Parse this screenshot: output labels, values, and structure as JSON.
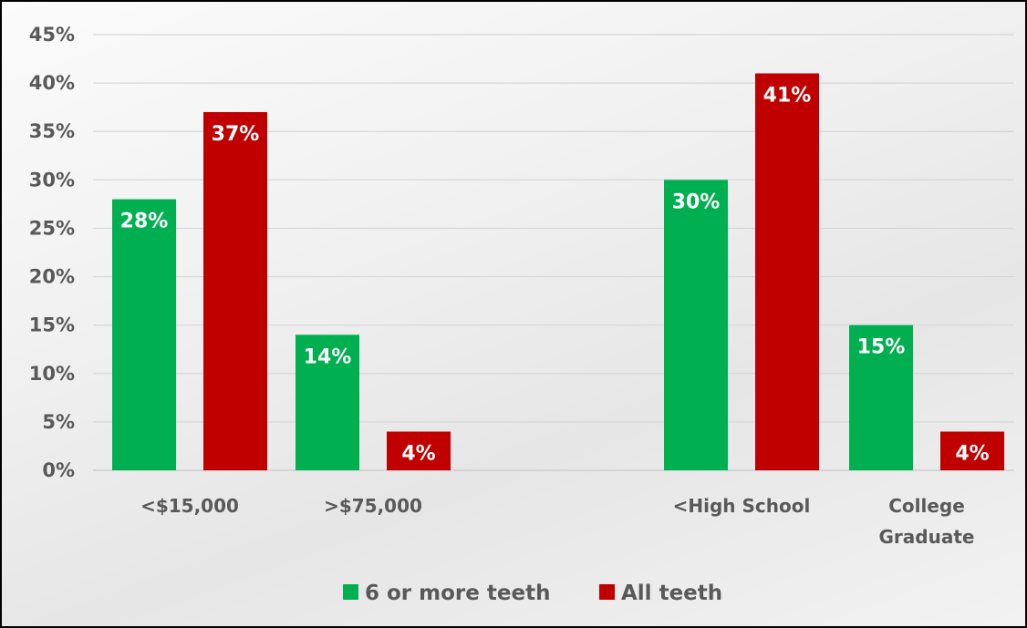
{
  "chart_data": {
    "type": "bar",
    "title": "",
    "xlabel": "",
    "ylabel": "",
    "categories": [
      [
        "<$15,000"
      ],
      [
        ">$75,000"
      ],
      [
        "<High School"
      ],
      [
        "College",
        "Graduate"
      ]
    ],
    "series": [
      {
        "name": "6 or more teeth",
        "color": "#00b050",
        "values": [
          28,
          14,
          30,
          15
        ]
      },
      {
        "name": "All teeth",
        "color": "#c00000",
        "values": [
          37,
          4,
          41,
          4
        ]
      }
    ],
    "data_labels": [
      [
        "28%",
        "14%",
        "30%",
        "15%"
      ],
      [
        "37%",
        "4%",
        "41%",
        "4%"
      ]
    ],
    "y_ticks": [
      "0%",
      "5%",
      "10%",
      "15%",
      "20%",
      "25%",
      "30%",
      "35%",
      "40%",
      "45%"
    ],
    "ylim": [
      0,
      45
    ],
    "y_unit": "%",
    "grid": true,
    "legend": "bottom"
  }
}
